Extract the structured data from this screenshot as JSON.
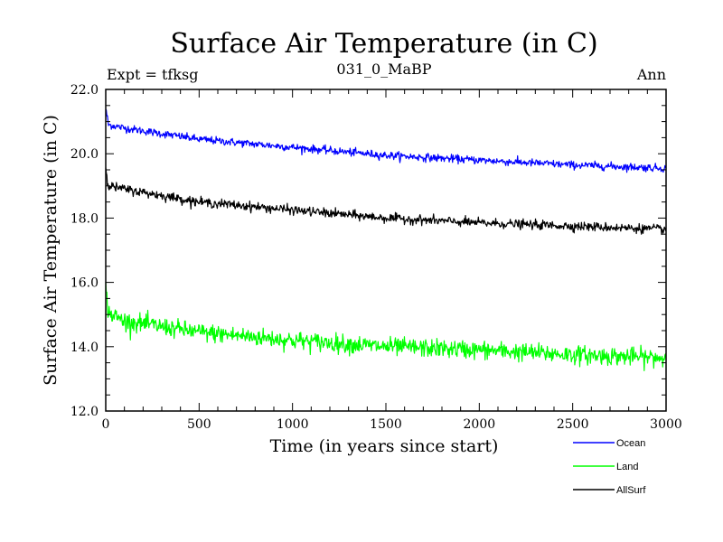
{
  "chart_data": {
    "type": "line",
    "title": "Surface Air Temperature (in C)",
    "subtitle_left": "Expt = tfksg",
    "subtitle_center": "031_0_MaBP",
    "subtitle_right": "Ann",
    "xlabel": "Time (in years since start)",
    "ylabel": "Surface Air Temperature (in C)",
    "xlim": [
      0,
      3000
    ],
    "ylim": [
      12.0,
      22.0
    ],
    "x_ticks": [
      0,
      500,
      1000,
      1500,
      2000,
      2500,
      3000
    ],
    "x_tick_labels": [
      "0",
      "500",
      "1000",
      "1500",
      "2000",
      "2500",
      "3000"
    ],
    "y_ticks": [
      12,
      14,
      16,
      18,
      20,
      22
    ],
    "y_tick_labels": [
      "12.0",
      "14.0",
      "16.0",
      "18.0",
      "20.0",
      "22.0"
    ],
    "legend_position": "bottom-right, below plot",
    "series": [
      {
        "name": "Ocean",
        "color": "#0000ff",
        "noise": 0.06,
        "points": [
          [
            0,
            21.4
          ],
          [
            15,
            20.9
          ],
          [
            100,
            20.8
          ],
          [
            500,
            20.45
          ],
          [
            1000,
            20.2
          ],
          [
            1500,
            19.95
          ],
          [
            2000,
            19.8
          ],
          [
            2500,
            19.65
          ],
          [
            3000,
            19.55
          ]
        ]
      },
      {
        "name": "Land",
        "color": "#00ff00",
        "noise": 0.14,
        "points": [
          [
            0,
            15.8
          ],
          [
            15,
            15.05
          ],
          [
            100,
            14.8
          ],
          [
            500,
            14.45
          ],
          [
            1000,
            14.2
          ],
          [
            1500,
            14.0
          ],
          [
            2000,
            13.9
          ],
          [
            2500,
            13.75
          ],
          [
            3000,
            13.65
          ]
        ]
      },
      {
        "name": "AllSurf",
        "color": "#000000",
        "noise": 0.07,
        "points": [
          [
            0,
            19.6
          ],
          [
            15,
            19.0
          ],
          [
            100,
            18.9
          ],
          [
            500,
            18.5
          ],
          [
            1000,
            18.25
          ],
          [
            1500,
            18.0
          ],
          [
            2000,
            17.85
          ],
          [
            2500,
            17.75
          ],
          [
            3000,
            17.65
          ]
        ]
      }
    ]
  }
}
